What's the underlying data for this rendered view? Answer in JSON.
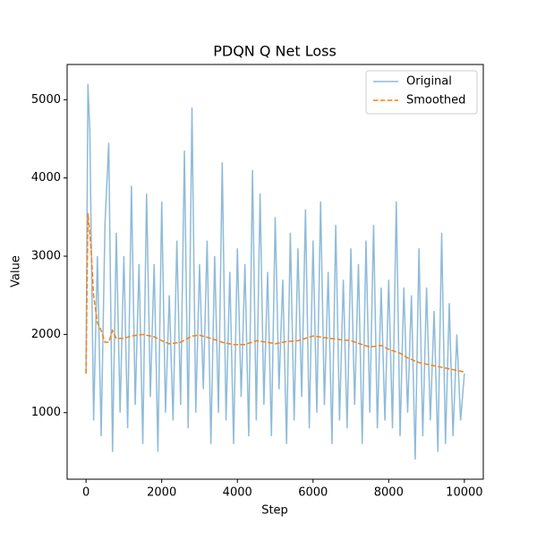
{
  "chart_data": {
    "type": "line",
    "title": "PDQN Q Net Loss",
    "xlabel": "Step",
    "ylabel": "Value",
    "xlim": [
      -500,
      10500
    ],
    "ylim": [
      150,
      5450
    ],
    "xticks": [
      0,
      2000,
      4000,
      6000,
      8000,
      10000
    ],
    "yticks": [
      1000,
      2000,
      3000,
      4000,
      5000
    ],
    "grid": false,
    "legend": "upper right",
    "series": [
      {
        "name": "Original",
        "color": "#1f77b4",
        "opacity": 0.5,
        "dash": false,
        "x": [
          0,
          50,
          100,
          200,
          300,
          400,
          500,
          600,
          700,
          800,
          900,
          1000,
          1100,
          1200,
          1300,
          1400,
          1500,
          1600,
          1700,
          1800,
          1900,
          2000,
          2100,
          2200,
          2300,
          2400,
          2500,
          2600,
          2700,
          2800,
          2900,
          3000,
          3100,
          3200,
          3300,
          3400,
          3500,
          3600,
          3700,
          3800,
          3900,
          4000,
          4100,
          4200,
          4300,
          4400,
          4500,
          4600,
          4700,
          4800,
          4900,
          5000,
          5100,
          5200,
          5300,
          5400,
          5500,
          5600,
          5700,
          5800,
          5900,
          6000,
          6100,
          6200,
          6300,
          6400,
          6500,
          6600,
          6700,
          6800,
          6900,
          7000,
          7100,
          7200,
          7300,
          7400,
          7500,
          7600,
          7700,
          7800,
          7900,
          8000,
          8100,
          8200,
          8300,
          8400,
          8500,
          8600,
          8700,
          8800,
          8900,
          9000,
          9100,
          9200,
          9300,
          9400,
          9500,
          9600,
          9700,
          9800,
          9900,
          10000
        ],
        "values": [
          1500,
          5200,
          4600,
          900,
          3000,
          700,
          3400,
          4450,
          500,
          3300,
          1000,
          3000,
          800,
          3900,
          1100,
          2900,
          600,
          3800,
          1200,
          2900,
          500,
          3700,
          1000,
          2500,
          900,
          3200,
          1100,
          4350,
          800,
          4900,
          1000,
          2900,
          1300,
          3200,
          600,
          3000,
          1000,
          4200,
          900,
          2800,
          600,
          3100,
          1200,
          2900,
          700,
          4100,
          900,
          3800,
          1100,
          2800,
          700,
          3500,
          1300,
          2700,
          600,
          3300,
          900,
          3100,
          1200,
          3600,
          800,
          3200,
          1000,
          3700,
          1100,
          2800,
          600,
          3400,
          900,
          2700,
          800,
          3100,
          1100,
          2900,
          600,
          3200,
          1000,
          3400,
          800,
          2600,
          900,
          2700,
          800,
          3700,
          700,
          2600,
          1000,
          2500,
          400,
          3100,
          700,
          2600,
          900,
          2300,
          500,
          3300,
          600,
          2400,
          700,
          2000,
          900,
          1500
        ]
      },
      {
        "name": "Smoothed",
        "color": "#ff7f0e",
        "opacity": 1,
        "dash": true,
        "x": [
          0,
          50,
          100,
          150,
          200,
          300,
          400,
          500,
          600,
          700,
          800,
          1000,
          1200,
          1500,
          1800,
          2000,
          2200,
          2500,
          2800,
          3000,
          3300,
          3600,
          3900,
          4200,
          4500,
          4800,
          5000,
          5300,
          5600,
          6000,
          6300,
          6600,
          7000,
          7300,
          7500,
          7800,
          8000,
          8300,
          8500,
          8800,
          9100,
          9400,
          9700,
          10000
        ],
        "values": [
          1500,
          3550,
          3300,
          2950,
          2500,
          2150,
          2050,
          1900,
          1900,
          2050,
          1950,
          1950,
          1980,
          2000,
          1970,
          1920,
          1880,
          1900,
          1980,
          1990,
          1950,
          1900,
          1870,
          1870,
          1920,
          1900,
          1880,
          1910,
          1920,
          1980,
          1960,
          1940,
          1920,
          1870,
          1840,
          1860,
          1810,
          1760,
          1700,
          1640,
          1610,
          1580,
          1550,
          1520
        ]
      }
    ]
  }
}
